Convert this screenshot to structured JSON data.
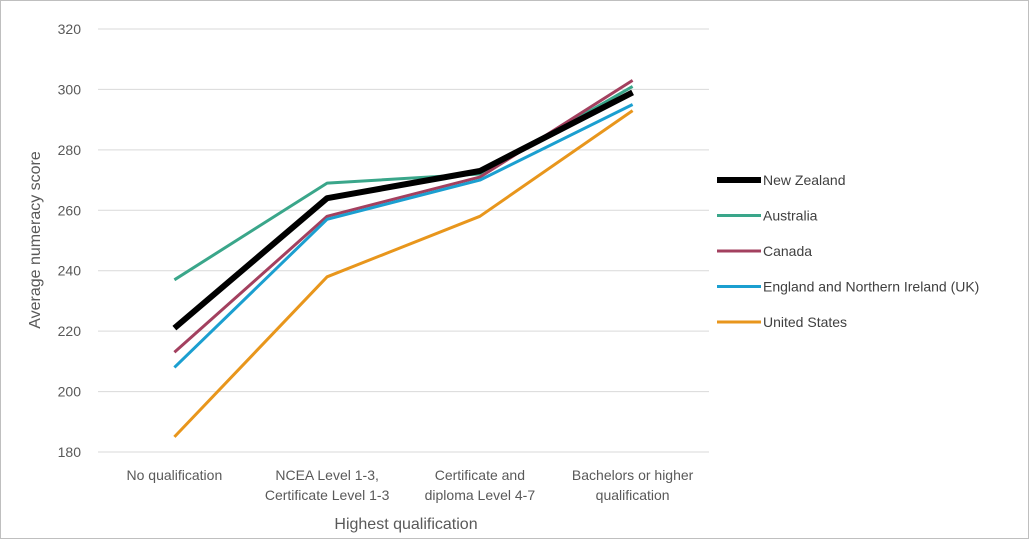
{
  "chart_data": {
    "type": "line",
    "title": "",
    "xlabel": "Highest qualification",
    "ylabel": "Average numeracy score",
    "ylim": [
      180,
      320
    ],
    "yticks": [
      180,
      200,
      220,
      240,
      260,
      280,
      300,
      320
    ],
    "grid": true,
    "legend_position": "right",
    "categories": [
      [
        "No qualification"
      ],
      [
        "NCEA Level 1-3,",
        "Certificate Level 1-3"
      ],
      [
        "Certificate and",
        "diploma Level 4-7"
      ],
      [
        "Bachelors or higher",
        "qualification"
      ]
    ],
    "series": [
      {
        "name": "New Zealand",
        "color": "#000000",
        "values": [
          221,
          264,
          273,
          299
        ]
      },
      {
        "name": "Australia",
        "color": "#3aa68a",
        "values": [
          237,
          269,
          272,
          301
        ]
      },
      {
        "name": "Canada",
        "color": "#a3405f",
        "values": [
          213,
          258,
          271,
          303
        ]
      },
      {
        "name": "England and Northern Ireland (UK)",
        "color": "#1b9fd0",
        "values": [
          208,
          257,
          270,
          295
        ]
      },
      {
        "name": "United States",
        "color": "#e8961c",
        "values": [
          185,
          238,
          258,
          293
        ]
      }
    ]
  }
}
